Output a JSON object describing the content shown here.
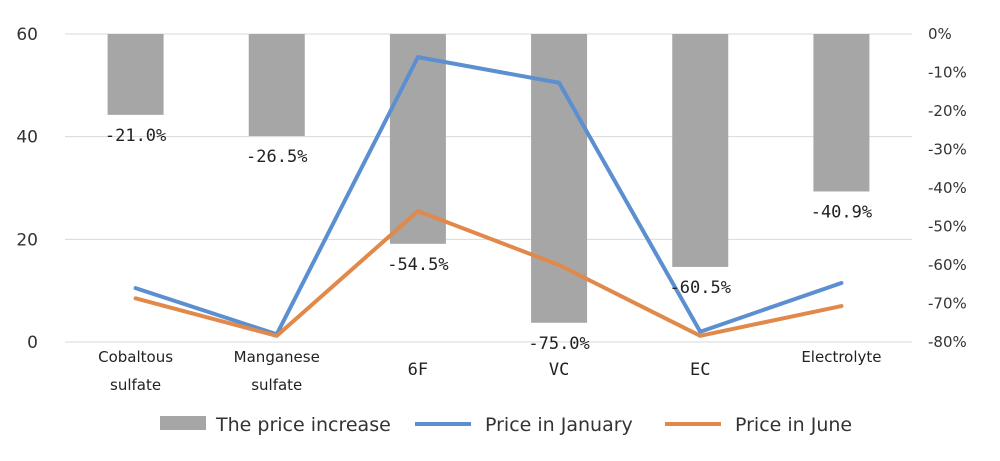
{
  "chart_data": {
    "type": "bar",
    "categories": [
      "Cobaltous sulfate",
      "Manganese sulfate",
      "6F",
      "VC",
      "EC",
      "Electrolyte"
    ],
    "category_lines": [
      [
        "Cobaltous",
        "sulfate"
      ],
      [
        "Manganese",
        "sulfate"
      ],
      [
        "6F"
      ],
      [
        "VC"
      ],
      [
        "EC"
      ],
      [
        "Electrolyte"
      ]
    ],
    "left_axis": {
      "ylim": [
        0,
        60
      ],
      "ticks": [
        "0",
        "20",
        "40",
        "60"
      ],
      "tick_values": [
        0,
        20,
        40,
        60
      ]
    },
    "right_axis": {
      "ylim": [
        -80,
        0
      ],
      "ticks": [
        "0%",
        "-10%",
        "-20%",
        "-30%",
        "-40%",
        "-50%",
        "-60%",
        "-70%",
        "-80%"
      ],
      "tick_values": [
        0,
        -10,
        -20,
        -30,
        -40,
        -50,
        -60,
        -70,
        -80
      ]
    },
    "series": [
      {
        "name": "The price increase",
        "type": "bar",
        "axis": "right",
        "color": "#a6a6a6",
        "values": [
          -21.0,
          -26.5,
          -54.5,
          -75.0,
          -60.5,
          -40.9
        ],
        "labels": [
          "-21.0%",
          "-26.5%",
          "-54.5%",
          "-75.0%",
          "-60.5%",
          "-40.9%"
        ]
      },
      {
        "name": "Price in January",
        "type": "line",
        "axis": "left",
        "color": "#5b8fd0",
        "values": [
          10.5,
          1.5,
          55.5,
          50.5,
          2.0,
          11.5
        ]
      },
      {
        "name": "Price in June",
        "type": "line",
        "axis": "left",
        "color": "#e0894a",
        "values": [
          8.5,
          1.2,
          25.5,
          15.0,
          1.2,
          7.0
        ]
      }
    ],
    "grid": true,
    "legend_position": "bottom"
  }
}
